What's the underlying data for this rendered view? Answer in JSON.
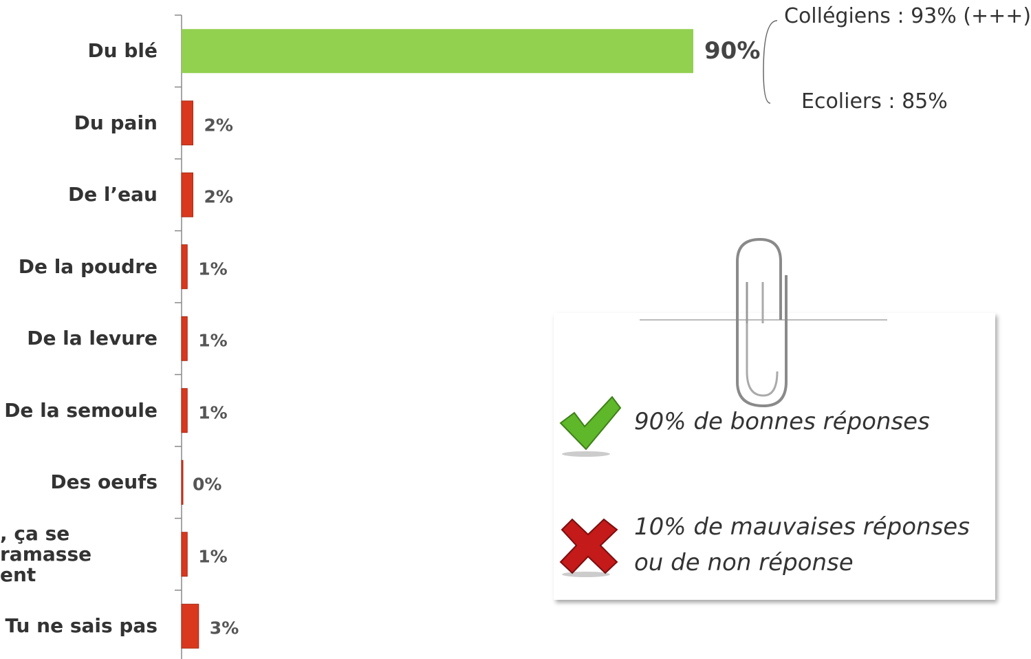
{
  "chart_data": {
    "type": "bar",
    "orientation": "horizontal",
    "categories": [
      "Du blé",
      "Du pain",
      "De l’eau",
      "De la poudre",
      "De la levure",
      "De la semoule",
      "Des oeufs",
      ", ça se ramasse\nent",
      "Tu ne sais pas"
    ],
    "values": [
      90,
      2,
      2,
      1,
      1,
      1,
      0,
      1,
      3
    ],
    "value_labels": [
      "90%",
      "2%",
      "2%",
      "1%",
      "1%",
      "1%",
      "0%",
      "1%",
      "3%"
    ],
    "colors": [
      "#92d050",
      "#d9381e",
      "#d9381e",
      "#d9381e",
      "#d9381e",
      "#d9381e",
      "#d9381e",
      "#d9381e",
      "#d9381e"
    ],
    "xlim": [
      0,
      90
    ],
    "annotations": [
      "Collégiens : 93% (+++)",
      "Ecoliers : 85%"
    ],
    "note": {
      "good": "90% de bonnes réponses",
      "bad": "10% de mauvaises réponses ou de non réponse"
    }
  }
}
